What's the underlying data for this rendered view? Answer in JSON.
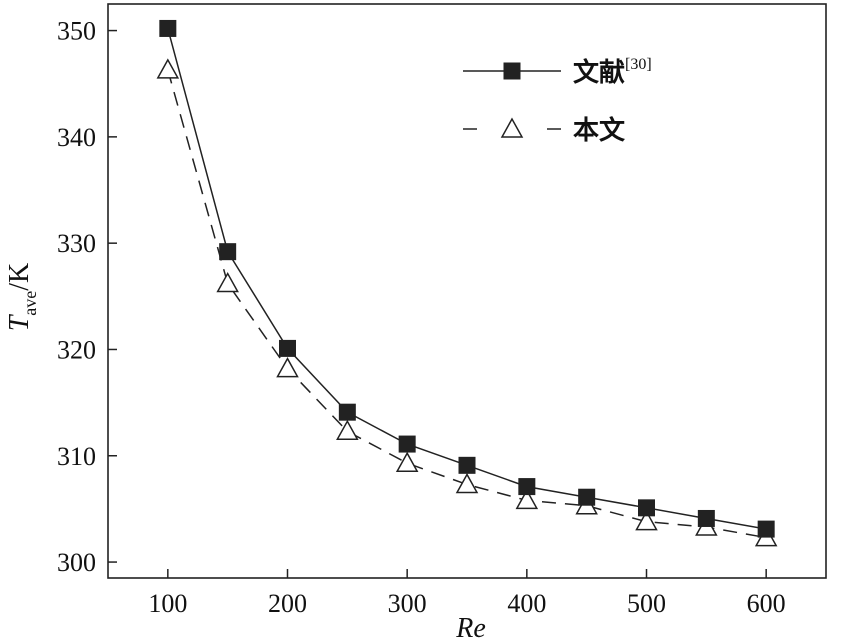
{
  "chart_data": {
    "type": "line",
    "x_label_main": "Re",
    "y_label_symbol": "T",
    "y_label_subscript": "ave",
    "y_label_unit": "/K",
    "xlim": [
      50,
      650
    ],
    "ylim": [
      298.5,
      352.5
    ],
    "x_ticks": [
      100,
      200,
      300,
      400,
      500,
      600
    ],
    "y_ticks": [
      300,
      310,
      320,
      330,
      340,
      350
    ],
    "x": [
      100,
      150,
      200,
      250,
      300,
      350,
      400,
      450,
      500,
      550,
      600
    ],
    "series": [
      {
        "name": "文献",
        "name_superscript": "[30]",
        "marker": "filled-square",
        "line": "solid",
        "color": "#222222",
        "values": [
          350.2,
          329.2,
          320.1,
          314.1,
          311.1,
          309.1,
          307.1,
          306.1,
          305.1,
          304.1,
          303.1
        ]
      },
      {
        "name": "本文",
        "name_superscript": "",
        "marker": "open-triangle",
        "line": "dashed",
        "color": "#222222",
        "values": [
          346.3,
          326.2,
          318.2,
          312.3,
          309.3,
          307.3,
          305.8,
          305.3,
          303.8,
          303.3,
          302.3
        ]
      }
    ],
    "legend_position": "top-right",
    "grid": false
  }
}
